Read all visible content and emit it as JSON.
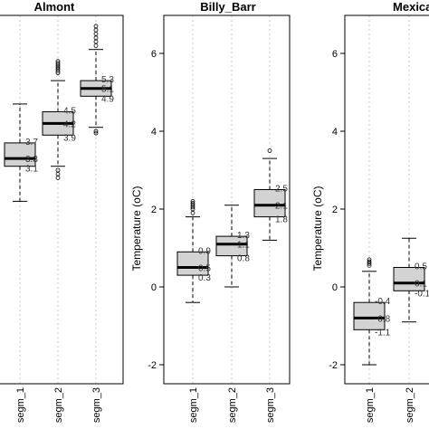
{
  "chart_data": [
    {
      "type": "box",
      "title": "Almont",
      "ylabel": "",
      "ylim": [
        -2.7,
        7
      ],
      "yticks": [],
      "categories": [
        "segm_1",
        "segm_2",
        "segm_3"
      ],
      "boxes": [
        {
          "q1": 3.1,
          "median": 3.3,
          "q3": 3.7,
          "whisker_low": 2.2,
          "whisker_high": 4.7,
          "outliers": [],
          "labels": [
            "3.7",
            "3.3",
            "3.1"
          ]
        },
        {
          "q1": 3.9,
          "median": 4.2,
          "q3": 4.5,
          "whisker_low": 3.1,
          "whisker_high": 5.3,
          "outliers": [
            3.0,
            2.9,
            2.8,
            5.5,
            5.55,
            5.6,
            5.65,
            5.7,
            5.75,
            5.8
          ],
          "labels": [
            "4.5",
            "4.2",
            "3.9"
          ]
        },
        {
          "q1": 4.9,
          "median": 5.1,
          "q3": 5.3,
          "whisker_low": 4.1,
          "whisker_high": 6.1,
          "outliers": [
            6.2,
            6.3,
            6.4,
            6.5,
            6.6,
            6.7,
            3.95,
            4.0
          ],
          "labels": [
            "5.3",
            "5.1",
            "4.9"
          ]
        }
      ]
    },
    {
      "type": "box",
      "title": "Billy_Barr",
      "ylabel": "Temperature (oC)",
      "ylim": [
        -2.7,
        7
      ],
      "yticks": [
        "-2",
        "0",
        "2",
        "4",
        "6"
      ],
      "categories": [
        "segm_1",
        "segm_2",
        "segm_3"
      ],
      "boxes": [
        {
          "q1": 0.3,
          "median": 0.5,
          "q3": 0.9,
          "whisker_low": -0.4,
          "whisker_high": 1.8,
          "outliers": [
            1.9,
            2.0,
            2.05,
            2.1,
            2.15,
            2.2
          ],
          "labels": [
            "0.9",
            "0.5",
            "0.3"
          ]
        },
        {
          "q1": 0.8,
          "median": 1.1,
          "q3": 1.3,
          "whisker_low": 0.0,
          "whisker_high": 2.1,
          "outliers": [],
          "labels": [
            "1.3",
            "1.1",
            "0.8"
          ]
        },
        {
          "q1": 1.8,
          "median": 2.1,
          "q3": 2.5,
          "whisker_low": 1.2,
          "whisker_high": 3.3,
          "outliers": [
            3.5
          ],
          "labels": [
            "2.5",
            "2.1",
            "1.8"
          ]
        }
      ]
    },
    {
      "type": "box",
      "title": "Mexican_C",
      "ylabel": "Temperature (oC)",
      "ylim": [
        -2.7,
        7
      ],
      "yticks": [
        "-2",
        "0",
        "2",
        "4",
        "6"
      ],
      "categories": [
        "segm_1",
        "segm_2"
      ],
      "boxes": [
        {
          "q1": -1.1,
          "median": -0.8,
          "q3": -0.4,
          "whisker_low": -2.0,
          "whisker_high": 0.4,
          "outliers": [
            0.55,
            0.6,
            0.65,
            0.7
          ],
          "labels": [
            "-0.4",
            "-0.8",
            "-1.1"
          ]
        },
        {
          "q1": -0.1,
          "median": 0.1,
          "q3": 0.5,
          "whisker_low": -0.9,
          "whisker_high": 1.25,
          "outliers": [],
          "labels": [
            "0.5",
            "0.1",
            "-0.1"
          ]
        }
      ]
    }
  ]
}
